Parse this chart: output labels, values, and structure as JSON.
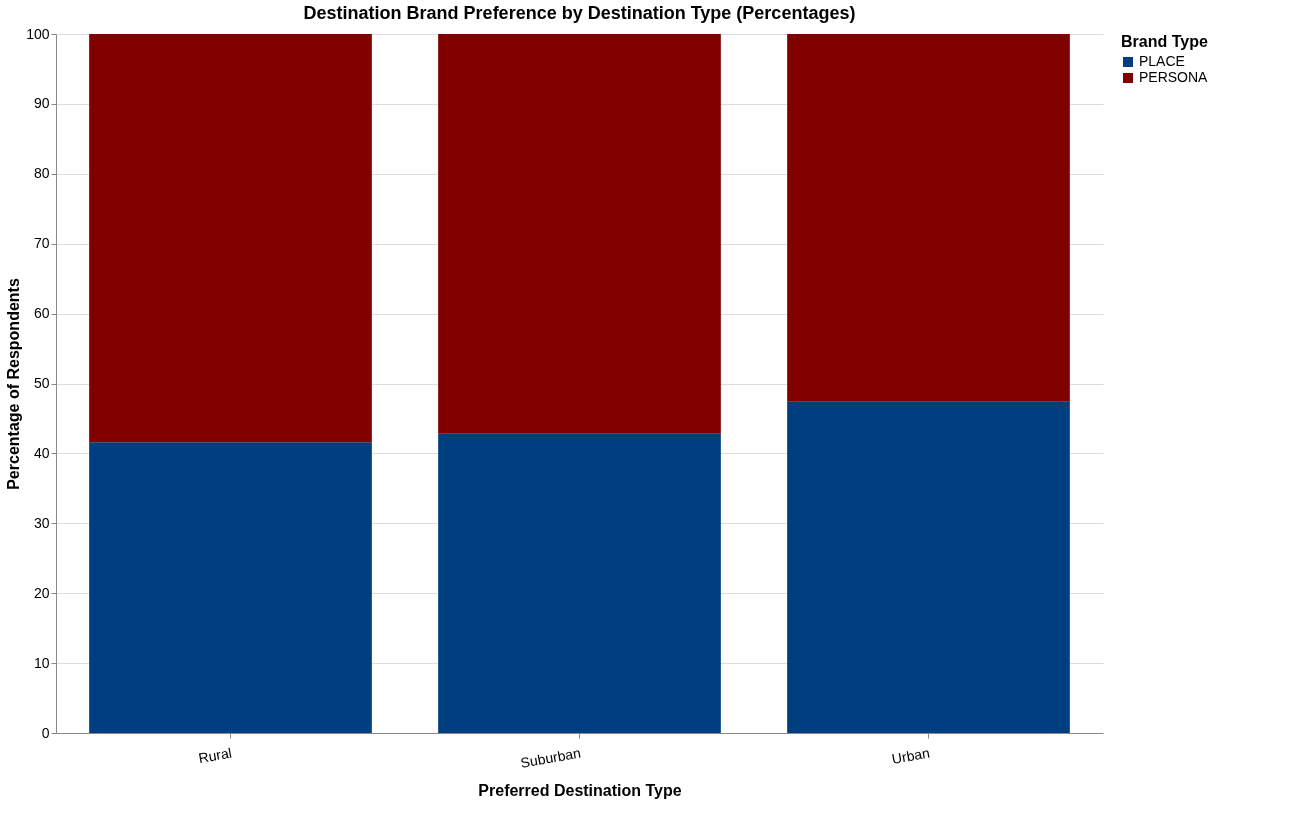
{
  "chart_data": {
    "type": "bar",
    "title": "Destination Brand Preference by Destination Type (Percentages)",
    "xlabel": "Preferred Destination Type",
    "ylabel": "Percentage of Respondents",
    "legend_title": "Brand Type",
    "categories": [
      "Rural",
      "Suburban",
      "Urban"
    ],
    "series": [
      {
        "name": "PLACE",
        "color": "#003f7f",
        "values": [
          41.6,
          42.8,
          47.4
        ]
      },
      {
        "name": "PERSONA",
        "color": "#800000",
        "values": [
          58.4,
          57.2,
          52.6
        ]
      }
    ],
    "stacked": true,
    "ylim": [
      0,
      100
    ],
    "yticks": [
      0,
      10,
      20,
      30,
      40,
      50,
      60,
      70,
      80,
      90,
      100
    ],
    "grid": "y",
    "legend": "top right"
  }
}
